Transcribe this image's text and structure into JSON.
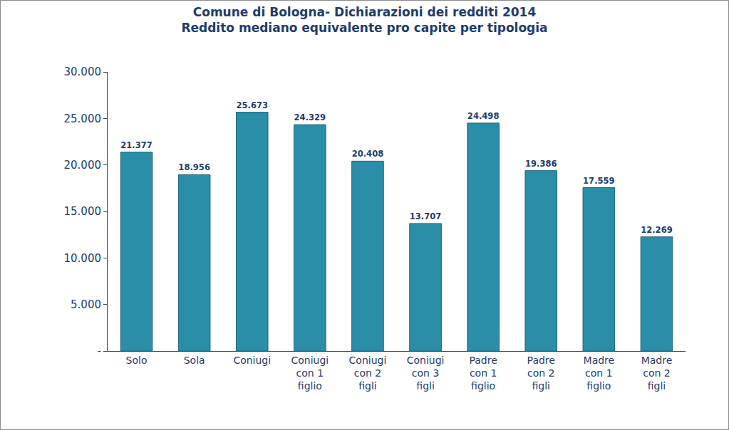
{
  "chart_data": {
    "type": "bar",
    "title": "Comune di Bologna- Dichiarazioni dei redditi 2014",
    "subtitle": "Reddito mediano equivalente pro capite per tipologia",
    "categories": [
      "Solo",
      "Sola",
      "Coniugi",
      "Coniugi\ncon 1\nfiglio",
      "Coniugi\ncon 2\nfigli",
      "Coniugi\ncon 3\nfigli",
      "Padre\ncon 1\nfiglio",
      "Padre\ncon 2\nfigli",
      "Madre\ncon 1\nfiglio",
      "Madre\ncon 2\nfigli"
    ],
    "values": [
      21377,
      18956,
      25673,
      24329,
      20408,
      13707,
      24498,
      19386,
      17559,
      12269
    ],
    "value_labels": [
      "21.377",
      "18.956",
      "25.673",
      "24.329",
      "20.408",
      "13.707",
      "24.498",
      "19.386",
      "17.559",
      "12.269"
    ],
    "color": "#2b8ea8",
    "ylim": [
      0,
      30000
    ],
    "yticks": [
      {
        "value": 0,
        "label": "-"
      },
      {
        "value": 5000,
        "label": "5.000"
      },
      {
        "value": 10000,
        "label": "10.000"
      },
      {
        "value": 15000,
        "label": "15.000"
      },
      {
        "value": 20000,
        "label": "20.000"
      },
      {
        "value": 25000,
        "label": "25.000"
      },
      {
        "value": 30000,
        "label": "30.000"
      }
    ],
    "grid": false,
    "data_labels": true
  }
}
